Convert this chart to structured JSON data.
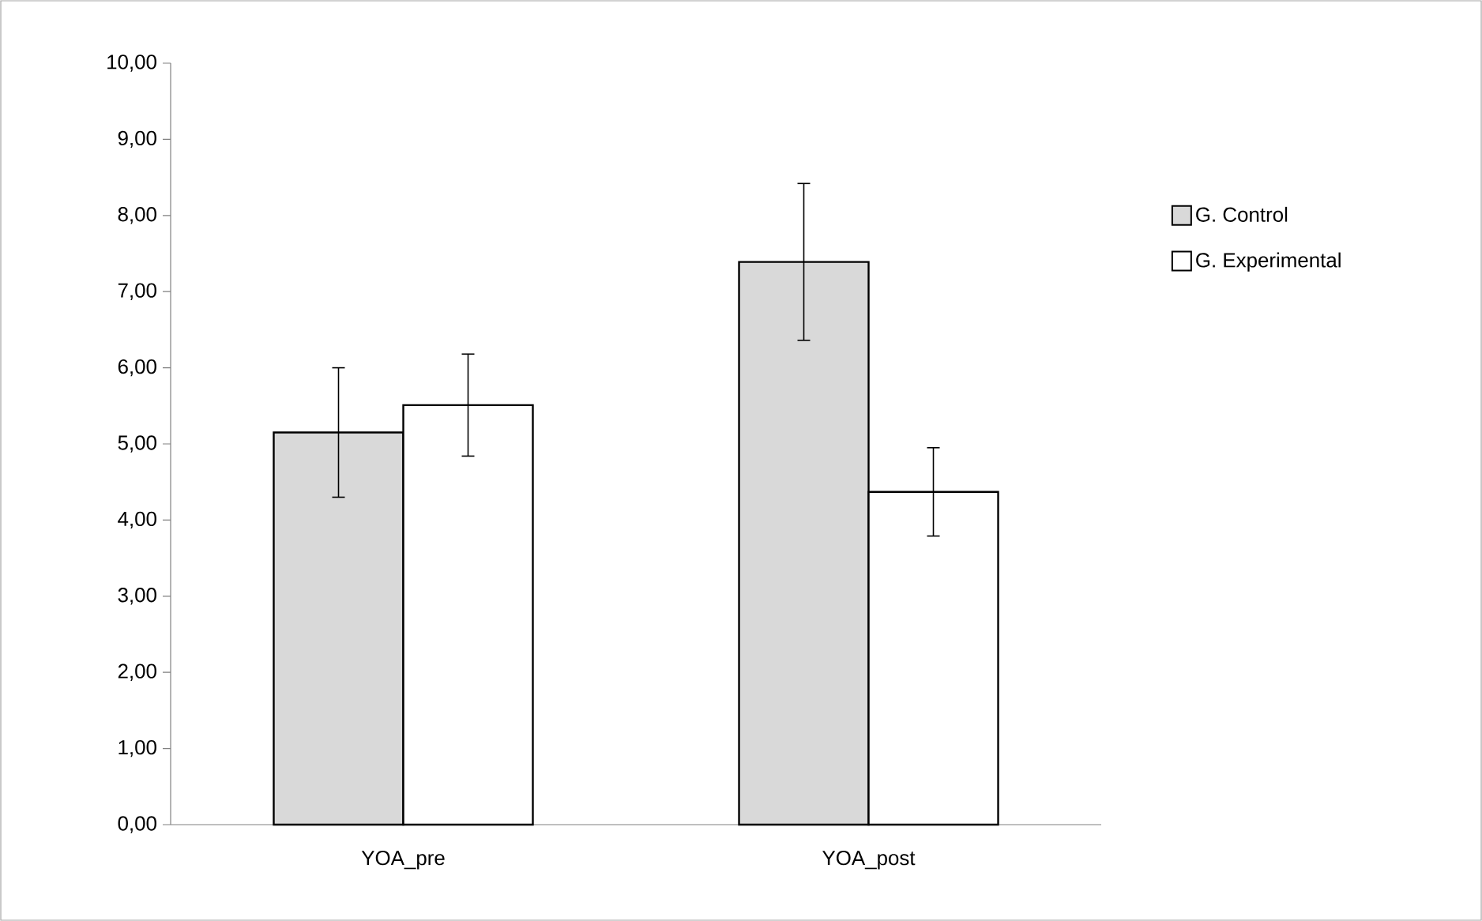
{
  "chart_data": {
    "type": "bar",
    "categories": [
      "YOA_pre",
      "YOA_post"
    ],
    "series": [
      {
        "name": "G. Control",
        "color": "#d9d9d9",
        "values": [
          5.15,
          7.39
        ],
        "errors": [
          0.85,
          1.03
        ]
      },
      {
        "name": "G. Experimental",
        "color": "#ffffff",
        "values": [
          5.51,
          4.37
        ],
        "errors": [
          0.67,
          0.58
        ]
      }
    ],
    "ylim": [
      0,
      10
    ],
    "yticks": [
      {
        "value": 0,
        "label": "0,00"
      },
      {
        "value": 1,
        "label": "1,00"
      },
      {
        "value": 2,
        "label": "2,00"
      },
      {
        "value": 3,
        "label": "3,00"
      },
      {
        "value": 4,
        "label": "4,00"
      },
      {
        "value": 5,
        "label": "5,00"
      },
      {
        "value": 6,
        "label": "6,00"
      },
      {
        "value": 7,
        "label": "7,00"
      },
      {
        "value": 8,
        "label": "8,00"
      },
      {
        "value": 9,
        "label": "9,00"
      },
      {
        "value": 10,
        "label": "10,00"
      }
    ],
    "grid": false,
    "legend": "right"
  }
}
